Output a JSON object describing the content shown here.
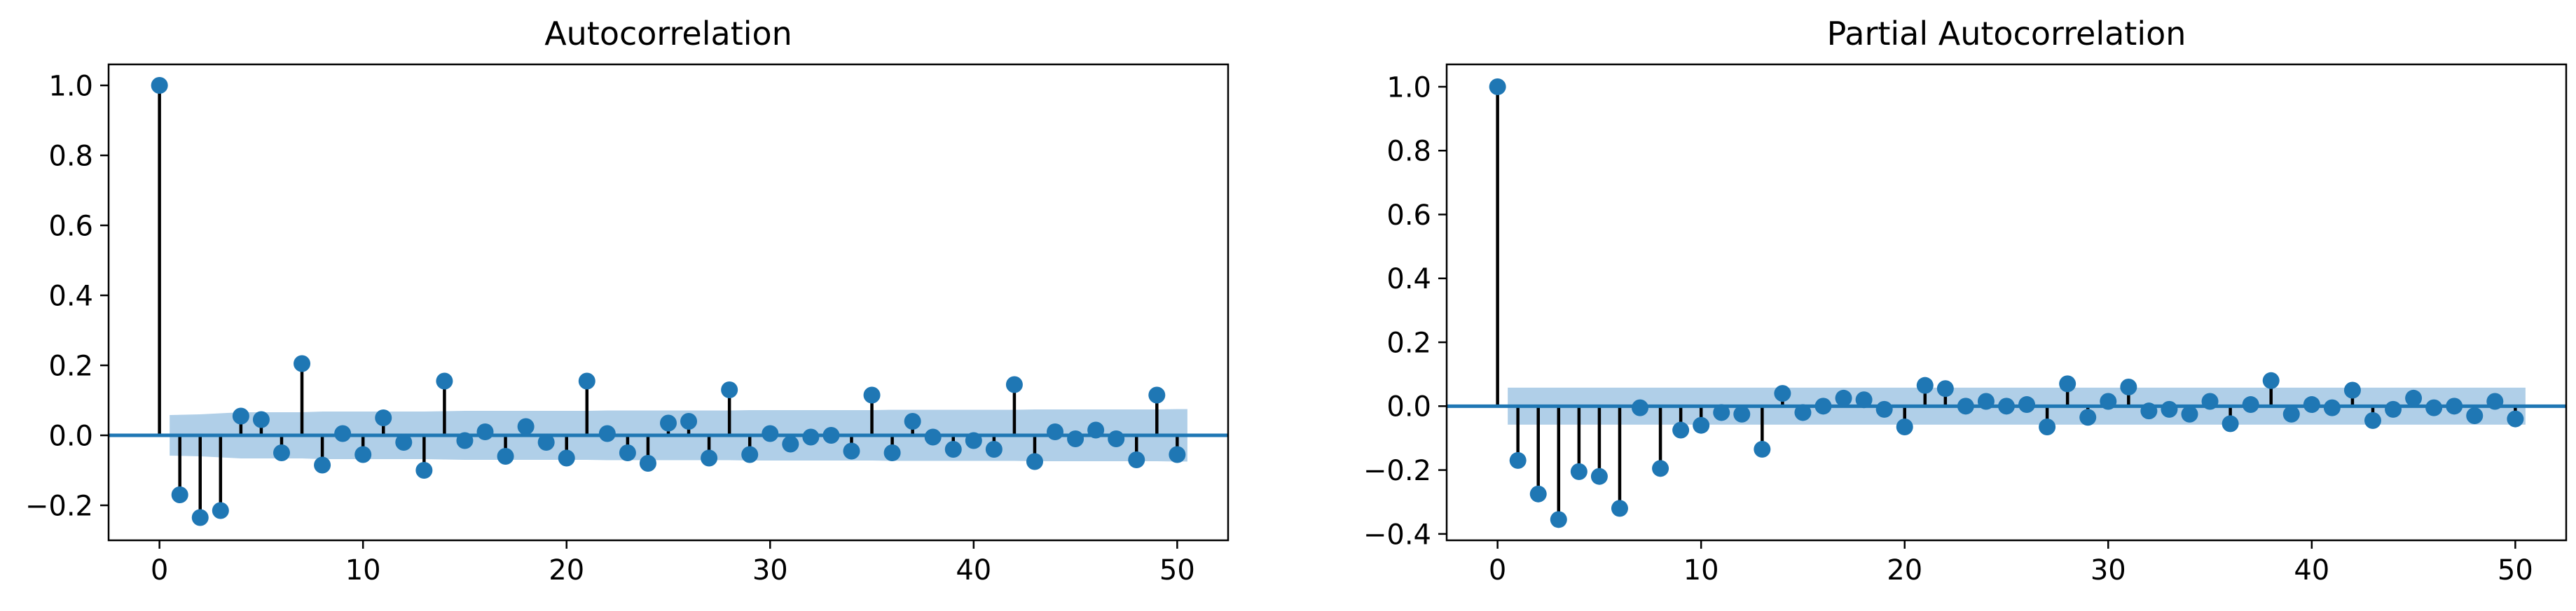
{
  "chart_data": [
    {
      "type": "stem",
      "title": "Autocorrelation",
      "xlabel": "",
      "ylabel": "",
      "xlim": [
        -2.5,
        52.5
      ],
      "ylim": [
        -0.3,
        1.06
      ],
      "xticks": [
        0,
        10,
        20,
        30,
        40,
        50
      ],
      "xtick_labels": [
        "0",
        "10",
        "20",
        "30",
        "40",
        "50"
      ],
      "yticks": [
        -0.2,
        0.0,
        0.2,
        0.4,
        0.6,
        0.8,
        1.0
      ],
      "ytick_labels": [
        "−0.2",
        "0.0",
        "0.2",
        "0.4",
        "0.6",
        "0.8",
        "1.0"
      ],
      "grid": false,
      "lags": [
        0,
        1,
        2,
        3,
        4,
        5,
        6,
        7,
        8,
        9,
        10,
        11,
        12,
        13,
        14,
        15,
        16,
        17,
        18,
        19,
        20,
        21,
        22,
        23,
        24,
        25,
        26,
        27,
        28,
        29,
        30,
        31,
        32,
        33,
        34,
        35,
        36,
        37,
        38,
        39,
        40,
        41,
        42,
        43,
        44,
        45,
        46,
        47,
        48,
        49,
        50
      ],
      "values": [
        1.0,
        -0.17,
        -0.235,
        -0.215,
        0.055,
        0.045,
        -0.05,
        0.205,
        -0.085,
        0.005,
        -0.055,
        0.05,
        -0.02,
        -0.1,
        0.155,
        -0.015,
        0.01,
        -0.06,
        0.025,
        -0.02,
        -0.065,
        0.155,
        0.005,
        -0.05,
        -0.08,
        0.035,
        0.04,
        -0.065,
        0.13,
        -0.055,
        0.005,
        -0.025,
        -0.005,
        0.0,
        -0.045,
        0.115,
        -0.05,
        0.04,
        -0.005,
        -0.04,
        -0.015,
        -0.04,
        0.145,
        -0.075,
        0.01,
        -0.01,
        0.015,
        -0.01,
        -0.07,
        0.115,
        -0.055
      ],
      "confidence_band_upper": [
        0.0,
        0.058,
        0.06,
        0.063,
        0.066,
        0.066,
        0.066,
        0.066,
        0.068,
        0.068,
        0.068,
        0.068,
        0.068,
        0.068,
        0.069,
        0.07,
        0.07,
        0.07,
        0.07,
        0.07,
        0.07,
        0.07,
        0.071,
        0.071,
        0.071,
        0.071,
        0.071,
        0.071,
        0.071,
        0.072,
        0.072,
        0.072,
        0.072,
        0.072,
        0.072,
        0.072,
        0.073,
        0.073,
        0.073,
        0.073,
        0.073,
        0.073,
        0.073,
        0.074,
        0.074,
        0.074,
        0.074,
        0.074,
        0.074,
        0.074,
        0.075
      ],
      "colors": {
        "markers": "#1f77b4",
        "stems": "#000000",
        "zero_line": "#1f77b4",
        "band": "#b0cfe8"
      }
    },
    {
      "type": "stem",
      "title": "Partial Autocorrelation",
      "xlabel": "",
      "ylabel": "",
      "xlim": [
        -2.5,
        52.5
      ],
      "ylim": [
        -0.42,
        1.07
      ],
      "xticks": [
        0,
        10,
        20,
        30,
        40,
        50
      ],
      "xtick_labels": [
        "0",
        "10",
        "20",
        "30",
        "40",
        "50"
      ],
      "yticks": [
        -0.4,
        -0.2,
        0.0,
        0.2,
        0.4,
        0.6,
        0.8,
        1.0
      ],
      "ytick_labels": [
        "−0.4",
        "−0.2",
        "0.0",
        "0.2",
        "0.4",
        "0.6",
        "0.8",
        "1.0"
      ],
      "grid": false,
      "lags": [
        0,
        1,
        2,
        3,
        4,
        5,
        6,
        7,
        8,
        9,
        10,
        11,
        12,
        13,
        14,
        15,
        16,
        17,
        18,
        19,
        20,
        21,
        22,
        23,
        24,
        25,
        26,
        27,
        28,
        29,
        30,
        31,
        32,
        33,
        34,
        35,
        36,
        37,
        38,
        39,
        40,
        41,
        42,
        43,
        44,
        45,
        46,
        47,
        48,
        49,
        50
      ],
      "values": [
        1.0,
        -0.17,
        -0.275,
        -0.355,
        -0.205,
        -0.22,
        -0.32,
        -0.005,
        -0.195,
        -0.075,
        -0.06,
        -0.02,
        -0.025,
        -0.135,
        0.04,
        -0.02,
        0.0,
        0.025,
        0.02,
        -0.01,
        -0.065,
        0.065,
        0.055,
        0.0,
        0.015,
        0.0,
        0.005,
        -0.065,
        0.07,
        -0.035,
        0.015,
        0.06,
        -0.015,
        -0.01,
        -0.025,
        0.015,
        -0.055,
        0.005,
        0.08,
        -0.025,
        0.005,
        -0.005,
        0.05,
        -0.045,
        -0.01,
        0.025,
        -0.005,
        0.0,
        -0.03,
        0.015,
        -0.04
      ],
      "confidence_band_upper": [
        0.0,
        0.058,
        0.058,
        0.058,
        0.058,
        0.058,
        0.058,
        0.058,
        0.058,
        0.058,
        0.058,
        0.058,
        0.058,
        0.058,
        0.058,
        0.058,
        0.058,
        0.058,
        0.058,
        0.058,
        0.058,
        0.058,
        0.058,
        0.058,
        0.058,
        0.058,
        0.058,
        0.058,
        0.058,
        0.058,
        0.058,
        0.058,
        0.058,
        0.058,
        0.058,
        0.058,
        0.058,
        0.058,
        0.058,
        0.058,
        0.058,
        0.058,
        0.058,
        0.058,
        0.058,
        0.058,
        0.058,
        0.058,
        0.058,
        0.058,
        0.058
      ],
      "colors": {
        "markers": "#1f77b4",
        "stems": "#000000",
        "zero_line": "#1f77b4",
        "band": "#b0cfe8"
      }
    }
  ]
}
